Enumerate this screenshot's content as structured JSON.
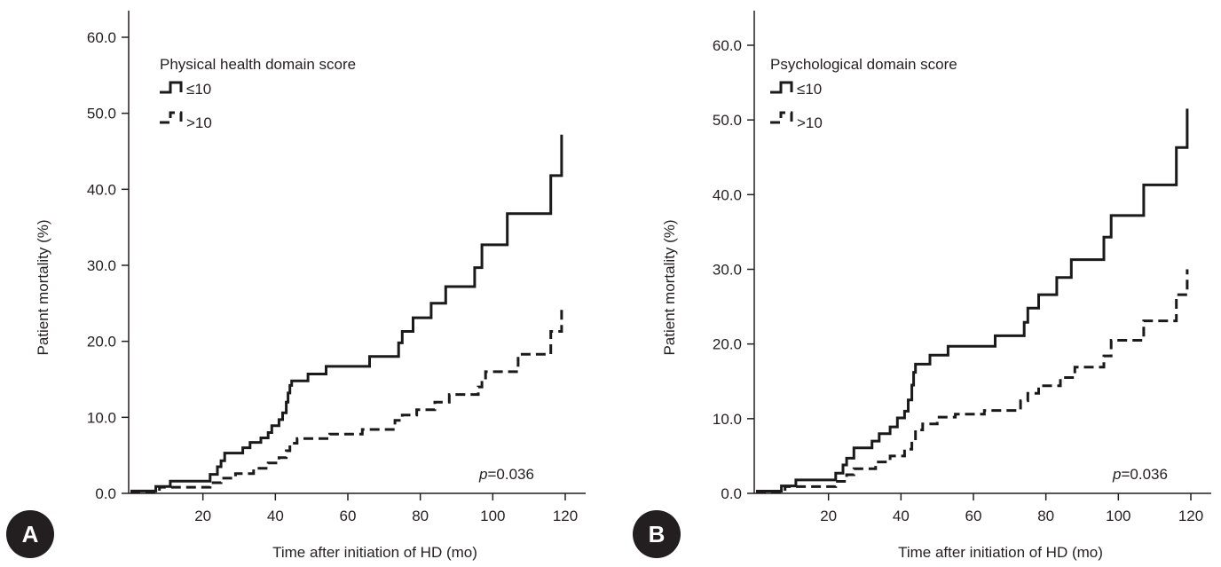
{
  "chart_data": [
    {
      "panel": "A",
      "type": "line",
      "step": true,
      "ylabel": "Patient mortality (%)",
      "xlabel": "Time after initiation of HD (mo)",
      "legend_title": "Physical health domain score",
      "legend_position": "top-left",
      "annotation": {
        "prefix": "p",
        "suffix": "=0.036"
      },
      "xlim": [
        0,
        122
      ],
      "ylim": [
        0,
        60
      ],
      "x_ticks": [
        20,
        40,
        60,
        80,
        100,
        120
      ],
      "y_ticks": [
        "0.0",
        "10.0",
        "20.0",
        "30.0",
        "40.0",
        "50.0",
        "60.0"
      ],
      "grid": false,
      "series": [
        {
          "name": "≤10",
          "style": "solid",
          "points": [
            [
              0,
              0.3
            ],
            [
              7,
              0.3
            ],
            [
              7,
              0.9
            ],
            [
              11,
              0.9
            ],
            [
              11,
              1.6
            ],
            [
              22,
              1.6
            ],
            [
              22,
              2.5
            ],
            [
              24,
              2.5
            ],
            [
              24,
              3.5
            ],
            [
              25,
              3.5
            ],
            [
              25,
              4.3
            ],
            [
              26,
              4.3
            ],
            [
              26,
              5.3
            ],
            [
              31,
              5.3
            ],
            [
              31,
              6.0
            ],
            [
              33,
              6.0
            ],
            [
              33,
              6.7
            ],
            [
              36,
              6.7
            ],
            [
              36,
              7.3
            ],
            [
              38,
              7.3
            ],
            [
              38,
              8.0
            ],
            [
              39,
              8.0
            ],
            [
              39,
              8.9
            ],
            [
              41,
              8.9
            ],
            [
              41,
              9.7
            ],
            [
              42,
              9.7
            ],
            [
              42,
              10.6
            ],
            [
              43,
              10.6
            ],
            [
              43,
              12.0
            ],
            [
              43.5,
              12.0
            ],
            [
              43.5,
              13.2
            ],
            [
              44,
              13.2
            ],
            [
              44,
              14.2
            ],
            [
              44.5,
              14.2
            ],
            [
              44.5,
              14.8
            ],
            [
              49,
              14.8
            ],
            [
              49,
              15.7
            ],
            [
              54,
              15.7
            ],
            [
              54,
              16.7
            ],
            [
              66,
              16.7
            ],
            [
              66,
              18.0
            ],
            [
              74,
              18.0
            ],
            [
              74,
              19.8
            ],
            [
              75,
              19.8
            ],
            [
              75,
              21.3
            ],
            [
              78,
              21.3
            ],
            [
              78,
              23.1
            ],
            [
              83,
              23.1
            ],
            [
              83,
              25.0
            ],
            [
              87,
              25.0
            ],
            [
              87,
              27.2
            ],
            [
              95,
              27.2
            ],
            [
              95,
              29.7
            ],
            [
              97,
              29.7
            ],
            [
              97,
              32.7
            ],
            [
              104,
              32.7
            ],
            [
              104,
              36.8
            ],
            [
              116,
              36.8
            ],
            [
              116,
              41.8
            ],
            [
              119,
              41.8
            ],
            [
              119,
              47.2
            ]
          ]
        },
        {
          "name": ">10",
          "style": "dashed",
          "points": [
            [
              0,
              0.2
            ],
            [
              8,
              0.2
            ],
            [
              8,
              0.8
            ],
            [
              22,
              0.8
            ],
            [
              22,
              1.4
            ],
            [
              25,
              1.4
            ],
            [
              25,
              2.0
            ],
            [
              29,
              2.0
            ],
            [
              29,
              2.6
            ],
            [
              34,
              2.6
            ],
            [
              34,
              3.3
            ],
            [
              38,
              3.3
            ],
            [
              38,
              4.0
            ],
            [
              41,
              4.0
            ],
            [
              41,
              4.7
            ],
            [
              43,
              4.7
            ],
            [
              43,
              5.6
            ],
            [
              44,
              5.6
            ],
            [
              44,
              6.6
            ],
            [
              46,
              6.6
            ],
            [
              46,
              7.2
            ],
            [
              55,
              7.2
            ],
            [
              55,
              7.8
            ],
            [
              64,
              7.8
            ],
            [
              64,
              8.4
            ],
            [
              73,
              8.4
            ],
            [
              73,
              9.6
            ],
            [
              75,
              9.6
            ],
            [
              75,
              10.3
            ],
            [
              79,
              10.3
            ],
            [
              79,
              11.0
            ],
            [
              84,
              11.0
            ],
            [
              84,
              12.0
            ],
            [
              88,
              12.0
            ],
            [
              88,
              13.0
            ],
            [
              96,
              13.0
            ],
            [
              96,
              14.0
            ],
            [
              97,
              14.0
            ],
            [
              97,
              15.0
            ],
            [
              98,
              15.0
            ],
            [
              98,
              16.0
            ],
            [
              107,
              16.0
            ],
            [
              107,
              18.3
            ],
            [
              116,
              18.3
            ],
            [
              116,
              21.3
            ],
            [
              119,
              21.3
            ],
            [
              119,
              24.5
            ]
          ]
        }
      ]
    },
    {
      "panel": "B",
      "type": "line",
      "step": true,
      "ylabel": "Patient mortality (%)",
      "xlabel": "Time after initiation of HD (mo)",
      "legend_title": "Psychological domain score",
      "legend_position": "top-left",
      "annotation": {
        "prefix": "p",
        "suffix": "=0.036"
      },
      "xlim": [
        0,
        122
      ],
      "ylim": [
        0,
        60
      ],
      "x_ticks": [
        20,
        40,
        60,
        80,
        100,
        120
      ],
      "y_ticks": [
        "0.0",
        "10.0",
        "20.0",
        "30.0",
        "40.0",
        "50.0",
        "60.0"
      ],
      "grid": false,
      "series": [
        {
          "name": "≤10",
          "style": "solid",
          "points": [
            [
              0,
              0.3
            ],
            [
              7,
              0.3
            ],
            [
              7,
              1.0
            ],
            [
              11,
              1.0
            ],
            [
              11,
              1.8
            ],
            [
              22,
              1.8
            ],
            [
              22,
              2.7
            ],
            [
              24,
              2.7
            ],
            [
              24,
              3.8
            ],
            [
              25,
              3.8
            ],
            [
              25,
              4.7
            ],
            [
              27,
              4.7
            ],
            [
              27,
              6.1
            ],
            [
              32,
              6.1
            ],
            [
              32,
              7.0
            ],
            [
              34,
              7.0
            ],
            [
              34,
              8.0
            ],
            [
              37,
              8.0
            ],
            [
              37,
              8.9
            ],
            [
              39,
              8.9
            ],
            [
              39,
              10.1
            ],
            [
              41,
              10.1
            ],
            [
              41,
              11.0
            ],
            [
              42,
              11.0
            ],
            [
              42,
              12.5
            ],
            [
              43,
              12.5
            ],
            [
              43,
              14.5
            ],
            [
              43.5,
              14.5
            ],
            [
              43.5,
              16.2
            ],
            [
              44,
              16.2
            ],
            [
              44,
              17.3
            ],
            [
              48,
              17.3
            ],
            [
              48,
              18.5
            ],
            [
              53,
              18.5
            ],
            [
              53,
              19.7
            ],
            [
              66,
              19.7
            ],
            [
              66,
              21.1
            ],
            [
              74,
              21.1
            ],
            [
              74,
              22.9
            ],
            [
              75,
              22.9
            ],
            [
              75,
              24.8
            ],
            [
              78,
              24.8
            ],
            [
              78,
              26.6
            ],
            [
              83,
              26.6
            ],
            [
              83,
              28.9
            ],
            [
              87,
              28.9
            ],
            [
              87,
              31.3
            ],
            [
              96,
              31.3
            ],
            [
              96,
              34.3
            ],
            [
              98,
              34.3
            ],
            [
              98,
              37.2
            ],
            [
              107,
              37.2
            ],
            [
              107,
              41.3
            ],
            [
              116,
              41.3
            ],
            [
              116,
              46.3
            ],
            [
              119,
              46.3
            ],
            [
              119,
              51.5
            ]
          ]
        },
        {
          "name": ">10",
          "style": "dashed",
          "points": [
            [
              0,
              0.2
            ],
            [
              8,
              0.2
            ],
            [
              8,
              0.9
            ],
            [
              22,
              0.9
            ],
            [
              22,
              1.6
            ],
            [
              25,
              1.6
            ],
            [
              25,
              2.5
            ],
            [
              27,
              2.5
            ],
            [
              27,
              3.3
            ],
            [
              33,
              3.3
            ],
            [
              33,
              4.2
            ],
            [
              37,
              4.2
            ],
            [
              37,
              5.0
            ],
            [
              41,
              5.0
            ],
            [
              41,
              5.9
            ],
            [
              43,
              5.9
            ],
            [
              43,
              7.0
            ],
            [
              44,
              7.0
            ],
            [
              44,
              8.5
            ],
            [
              46,
              8.5
            ],
            [
              46,
              9.3
            ],
            [
              50,
              9.3
            ],
            [
              50,
              10.2
            ],
            [
              55,
              10.2
            ],
            [
              55,
              10.6
            ],
            [
              63,
              10.6
            ],
            [
              63,
              11.1
            ],
            [
              73,
              11.1
            ],
            [
              73,
              12.4
            ],
            [
              75,
              12.4
            ],
            [
              75,
              13.4
            ],
            [
              78,
              13.4
            ],
            [
              78,
              14.4
            ],
            [
              84,
              14.4
            ],
            [
              84,
              15.5
            ],
            [
              88,
              15.5
            ],
            [
              88,
              16.9
            ],
            [
              96,
              16.9
            ],
            [
              96,
              18.4
            ],
            [
              98,
              18.4
            ],
            [
              98,
              20.5
            ],
            [
              107,
              20.5
            ],
            [
              107,
              23.1
            ],
            [
              116,
              23.1
            ],
            [
              116,
              26.6
            ],
            [
              119,
              26.6
            ],
            [
              119,
              30.0
            ]
          ]
        }
      ]
    }
  ]
}
